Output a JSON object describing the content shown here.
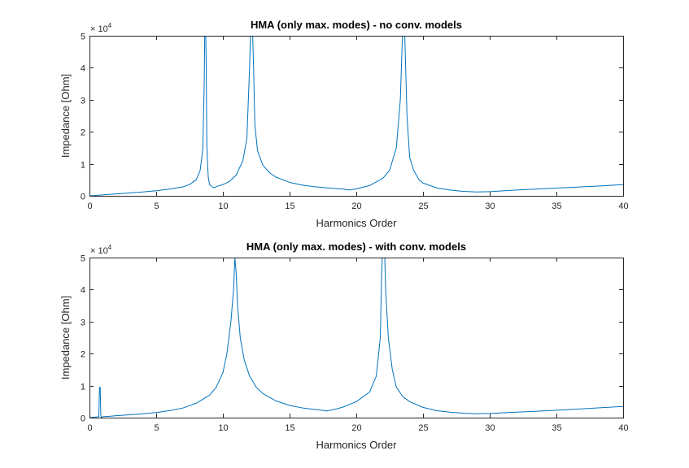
{
  "chart_data": [
    {
      "type": "line",
      "title": "HMA (only max. modes) - no conv. models",
      "xlabel": "Harmonics Order",
      "ylabel": "Impedance [Ohm]",
      "xlim": [
        0,
        40
      ],
      "ylim": [
        0,
        50000
      ],
      "y_exponent_base": "× 10",
      "y_exponent_power": "4",
      "xticks": [
        0,
        5,
        10,
        15,
        20,
        25,
        30,
        35,
        40
      ],
      "yticks": [
        0,
        1,
        2,
        3,
        4,
        5
      ],
      "grid": false,
      "series_color": "#0072BD",
      "series": [
        {
          "name": "",
          "x": [
            0,
            1,
            2,
            3,
            4,
            5,
            6,
            7,
            7.5,
            8,
            8.3,
            8.5,
            8.6,
            8.65,
            8.7,
            8.75,
            8.8,
            8.9,
            9.0,
            9.3,
            9.6,
            10,
            10.5,
            11,
            11.5,
            11.8,
            12.0,
            12.1,
            12.2,
            12.3,
            12.4,
            12.6,
            13,
            13.5,
            14,
            15,
            16,
            17,
            18,
            19,
            19.5,
            20,
            21,
            22,
            22.5,
            23,
            23.3,
            23.5,
            23.6,
            23.7,
            23.8,
            24,
            24.3,
            24.7,
            25,
            26,
            27,
            28,
            29,
            30,
            32,
            35,
            38,
            40
          ],
          "y": [
            0,
            300,
            600,
            900,
            1200,
            1600,
            2100,
            2800,
            3500,
            5000,
            8000,
            15000,
            35000,
            55000,
            55000,
            40000,
            15000,
            6000,
            3500,
            2500,
            3000,
            3500,
            4500,
            6500,
            11000,
            18000,
            40000,
            55000,
            55000,
            40000,
            22000,
            14000,
            9500,
            7200,
            5800,
            4200,
            3300,
            2800,
            2400,
            2100,
            1800,
            2200,
            3200,
            5500,
            8000,
            15000,
            30000,
            55000,
            55000,
            40000,
            25000,
            12000,
            8000,
            5000,
            4000,
            2500,
            1800,
            1400,
            1200,
            1300,
            1800,
            2400,
            3000,
            3500
          ]
        }
      ]
    },
    {
      "type": "line",
      "title": "HMA (only max. modes) - with conv. models",
      "xlabel": "Harmonics Order",
      "ylabel": "Impedance [Ohm]",
      "xlim": [
        0,
        40
      ],
      "ylim": [
        0,
        50000
      ],
      "y_exponent_base": "× 10",
      "y_exponent_power": "4",
      "xticks": [
        0,
        5,
        10,
        15,
        20,
        25,
        30,
        35,
        40
      ],
      "yticks": [
        0,
        1,
        2,
        3,
        4,
        5
      ],
      "grid": false,
      "series_color": "#0072BD",
      "series": [
        {
          "name": "",
          "x": [
            0,
            0.5,
            0.7,
            0.75,
            0.8,
            0.85,
            0.9,
            1.0,
            1.5,
            2,
            3,
            4,
            5,
            6,
            7,
            8,
            9,
            9.5,
            10,
            10.3,
            10.6,
            10.8,
            10.9,
            11.0,
            11.1,
            11.3,
            11.6,
            12,
            12.5,
            13,
            14,
            15,
            16,
            17,
            17.8,
            18.5,
            19,
            20,
            21,
            21.5,
            21.8,
            21.9,
            22.0,
            22.1,
            22.2,
            22.4,
            22.7,
            23,
            23.5,
            24,
            25,
            26,
            27,
            28,
            29,
            30,
            32,
            35,
            38,
            40
          ],
          "y": [
            0,
            200,
            300,
            9500,
            9500,
            500,
            0,
            300,
            400,
            600,
            900,
            1200,
            1600,
            2200,
            3000,
            4500,
            7000,
            9500,
            14000,
            20000,
            30000,
            40000,
            50000,
            45000,
            35000,
            25000,
            18000,
            13000,
            9500,
            7500,
            5200,
            3800,
            3000,
            2500,
            2100,
            2700,
            3300,
            5000,
            8000,
            13000,
            25000,
            45000,
            55000,
            55000,
            40000,
            25000,
            15000,
            9500,
            6500,
            5000,
            3200,
            2200,
            1700,
            1400,
            1200,
            1300,
            1700,
            2300,
            3000,
            3500
          ]
        }
      ]
    }
  ]
}
